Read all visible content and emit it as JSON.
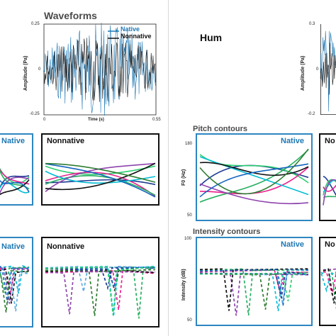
{
  "colors": {
    "native": "#1f78b4",
    "nonnative": "#111111",
    "panel_native_border": "#2e86c1",
    "palette": [
      "#1f3a93",
      "#2ecc71",
      "#e91e8c",
      "#27ae60",
      "#00bcd4",
      "#8e44ad",
      "#111111",
      "#1565c0",
      "#2e7d32",
      "#5dade2"
    ]
  },
  "left": {
    "waveforms": {
      "title": "Waveforms",
      "y_label": "Amplitude (Pa)",
      "x_label": "Time (s)",
      "y_ticks": [
        "0.25",
        "0",
        "-0.25"
      ],
      "x_ticks": [
        "0",
        "0.55"
      ],
      "legend": [
        "Native",
        "Nonnative"
      ]
    },
    "pitch": {
      "native_label": "Native",
      "nonnative_label": "Nonnative"
    },
    "intensity": {
      "native_label": "Native",
      "nonnative_label": "Nonnative"
    }
  },
  "right": {
    "condition": "Hum",
    "waveforms": {
      "y_label": "Amplitude (Pa)",
      "y_ticks": [
        "0.3",
        "0",
        "-0.2"
      ]
    },
    "pitch": {
      "title": "Pitch contours",
      "y_label": "F0 (Hz)",
      "y_ticks": [
        "180",
        "50"
      ],
      "native_label": "Native",
      "nonnative_label": "No"
    },
    "intensity": {
      "title": "Intensity contours",
      "y_label": "Intensity (dB)",
      "y_ticks": [
        "100",
        "50"
      ],
      "native_label": "Native",
      "nonnative_label": "No"
    }
  },
  "chart_data": [
    {
      "type": "line",
      "title": "Waveforms",
      "xlabel": "Time (s)",
      "ylabel": "Amplitude (Pa)",
      "xlim": [
        0,
        0.55
      ],
      "ylim": [
        -0.25,
        0.25
      ],
      "series": [
        {
          "name": "Native"
        },
        {
          "name": "Nonnative"
        }
      ]
    },
    {
      "type": "line",
      "title": "Pitch contours",
      "ylabel": "F0 (Hz)",
      "ylim": [
        50,
        180
      ],
      "panels": [
        "Native",
        "Nonnative"
      ]
    },
    {
      "type": "line",
      "title": "Intensity contours",
      "ylabel": "Intensity (dB)",
      "ylim": [
        50,
        100
      ],
      "panels": [
        "Native",
        "Nonnative"
      ]
    }
  ]
}
